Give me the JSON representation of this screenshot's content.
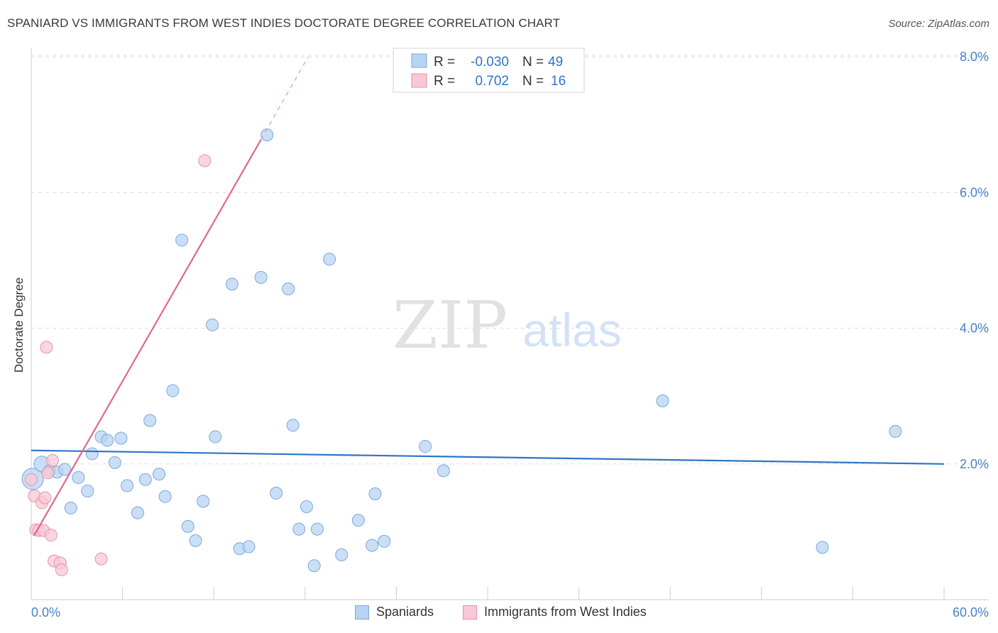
{
  "header": {
    "title": "SPANIARD VS IMMIGRANTS FROM WEST INDIES DOCTORATE DEGREE CORRELATION CHART",
    "source": "Source: ZipAtlas.com"
  },
  "watermark": {
    "zip": "ZIP",
    "atlas": "atlas"
  },
  "legend_top": {
    "rows": [
      {
        "r_label": "R =",
        "r_value": "-0.030",
        "n_label": "N =",
        "n_value": "49"
      },
      {
        "r_label": "R =",
        "r_value": "0.702",
        "n_label": "N =",
        "n_value": "16"
      }
    ]
  },
  "legend_bottom": {
    "items": [
      {
        "label": "Spaniards"
      },
      {
        "label": "Immigrants from West Indies"
      }
    ]
  },
  "colors": {
    "blue_fill": "#b8d4f3",
    "blue_stroke": "#7aa7dc",
    "blue_line": "#2e74c9",
    "pink_fill": "#f8c8d6",
    "pink_stroke": "#e691ab",
    "pink_line": "#e0678f",
    "tick_label": "#4a80c8",
    "grid": "#dddddd"
  },
  "chart_data": {
    "type": "scatter",
    "title": "SPANIARD VS IMMIGRANTS FROM WEST INDIES DOCTORATE DEGREE CORRELATION CHART",
    "xlabel": "",
    "ylabel": "Doctorate Degree",
    "xlim": [
      0,
      60
    ],
    "ylim": [
      0,
      8.3
    ],
    "x_tick_labels": [
      "0.0%",
      "60.0%"
    ],
    "y_ticks": [
      2,
      4,
      6,
      8
    ],
    "y_tick_labels": [
      "2.0%",
      "4.0%",
      "6.0%",
      "8.0%"
    ],
    "grid": true,
    "series": [
      {
        "name": "Spaniards",
        "r": -0.03,
        "n": 49,
        "points": [
          [
            0.1,
            1.78
          ],
          [
            0.7,
            2.0
          ],
          [
            1.2,
            1.9
          ],
          [
            1.7,
            1.88
          ],
          [
            2.2,
            1.92
          ],
          [
            2.6,
            1.35
          ],
          [
            3.1,
            1.8
          ],
          [
            3.7,
            1.6
          ],
          [
            4.0,
            2.15
          ],
          [
            4.6,
            2.4
          ],
          [
            5.0,
            2.35
          ],
          [
            5.5,
            2.02
          ],
          [
            5.9,
            2.38
          ],
          [
            6.3,
            1.68
          ],
          [
            7.0,
            1.28
          ],
          [
            7.5,
            1.77
          ],
          [
            7.8,
            2.64
          ],
          [
            8.4,
            1.85
          ],
          [
            8.8,
            1.52
          ],
          [
            9.3,
            3.08
          ],
          [
            9.9,
            5.3
          ],
          [
            10.3,
            1.08
          ],
          [
            10.8,
            0.87
          ],
          [
            11.3,
            1.45
          ],
          [
            11.9,
            4.05
          ],
          [
            12.1,
            2.4
          ],
          [
            13.2,
            4.65
          ],
          [
            13.7,
            0.75
          ],
          [
            14.3,
            0.78
          ],
          [
            15.1,
            4.75
          ],
          [
            16.1,
            1.57
          ],
          [
            16.9,
            4.58
          ],
          [
            17.2,
            2.57
          ],
          [
            17.6,
            1.04
          ],
          [
            18.1,
            1.37
          ],
          [
            18.6,
            0.5
          ],
          [
            18.8,
            1.04
          ],
          [
            19.6,
            5.02
          ],
          [
            20.4,
            0.66
          ],
          [
            21.5,
            1.17
          ],
          [
            22.4,
            0.8
          ],
          [
            22.6,
            1.56
          ],
          [
            23.2,
            0.86
          ],
          [
            25.9,
            2.26
          ],
          [
            27.1,
            1.9
          ],
          [
            15.5,
            6.85
          ],
          [
            41.5,
            2.93
          ],
          [
            52.0,
            0.77
          ],
          [
            56.8,
            2.48
          ]
        ],
        "trend": {
          "x": [
            0,
            60
          ],
          "y": [
            2.2,
            2.0
          ]
        }
      },
      {
        "name": "Immigrants from West Indies",
        "r": 0.702,
        "n": 16,
        "points": [
          [
            0.0,
            1.77
          ],
          [
            0.2,
            1.53
          ],
          [
            0.3,
            1.03
          ],
          [
            0.5,
            1.02
          ],
          [
            0.7,
            1.43
          ],
          [
            0.8,
            1.02
          ],
          [
            0.9,
            1.5
          ],
          [
            1.0,
            3.72
          ],
          [
            1.1,
            1.87
          ],
          [
            1.3,
            0.95
          ],
          [
            1.4,
            2.05
          ],
          [
            1.5,
            0.57
          ],
          [
            1.9,
            0.54
          ],
          [
            2.0,
            0.44
          ],
          [
            4.6,
            0.6
          ],
          [
            11.4,
            6.47
          ]
        ],
        "trend": {
          "x": [
            0.2,
            15.1
          ],
          "y": [
            0.95,
            6.78
          ]
        },
        "trend_extension": {
          "x": [
            15.1,
            18.2
          ],
          "y": [
            6.78,
            8.0
          ]
        }
      }
    ]
  }
}
